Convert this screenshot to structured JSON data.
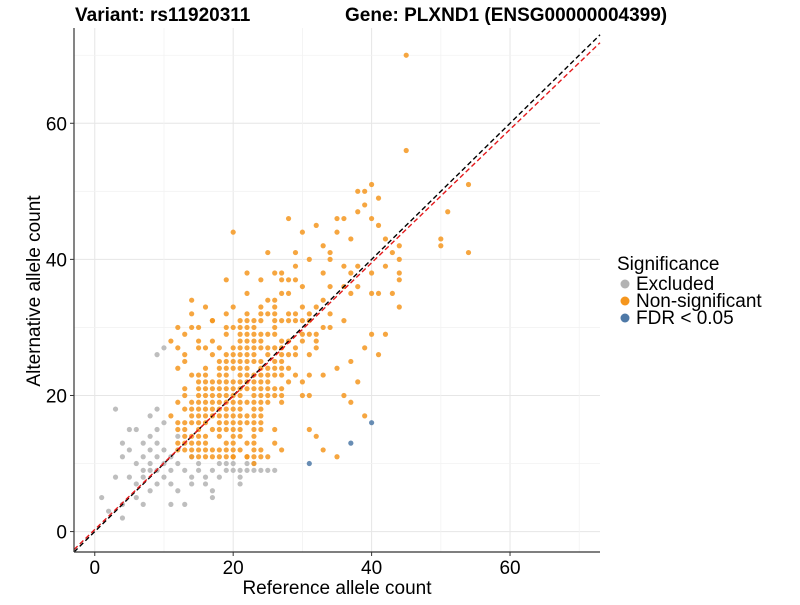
{
  "chart_data": {
    "type": "scatter",
    "title_left": "Variant: rs11920311",
    "title_right": "Gene: PLXND1 (ENSG00000004399)",
    "xlabel": "Reference allele count",
    "ylabel": "Alternative allele count",
    "xlim": [
      -3,
      73
    ],
    "ylim": [
      -3,
      74
    ],
    "xticks": [
      0,
      20,
      40,
      60
    ],
    "yticks": [
      0,
      20,
      40,
      60
    ],
    "grid": true,
    "reference_lines": [
      {
        "name": "identity",
        "slope": 1,
        "intercept": 0,
        "color": "#000000",
        "dash": true
      },
      {
        "name": "fit",
        "slope": 0.98,
        "intercept": 0.3,
        "color": "#E41A1C",
        "dash": true
      }
    ],
    "legend": {
      "title": "Significance",
      "position": "right",
      "entries": [
        {
          "label": "Excluded",
          "color": "#B3B3B3"
        },
        {
          "label": "Non-significant",
          "color": "#F5961E"
        },
        {
          "label": "FDR < 0.05",
          "color": "#4E79A7"
        }
      ]
    },
    "series": [
      {
        "name": "Excluded",
        "color": "#B3B3B3",
        "points": [
          [
            1,
            5
          ],
          [
            2,
            3
          ],
          [
            3,
            18
          ],
          [
            3,
            8
          ],
          [
            4,
            2
          ],
          [
            4,
            4
          ],
          [
            4,
            11
          ],
          [
            4,
            13
          ],
          [
            5,
            15
          ],
          [
            5,
            12
          ],
          [
            5,
            8
          ],
          [
            6,
            15
          ],
          [
            6,
            10
          ],
          [
            6,
            7
          ],
          [
            6,
            5
          ],
          [
            7,
            13
          ],
          [
            7,
            9
          ],
          [
            7,
            8
          ],
          [
            7,
            11
          ],
          [
            7,
            4
          ],
          [
            8,
            14
          ],
          [
            8,
            10
          ],
          [
            8,
            9
          ],
          [
            8,
            6
          ],
          [
            8,
            12
          ],
          [
            8,
            17
          ],
          [
            9,
            11
          ],
          [
            9,
            15
          ],
          [
            9,
            9
          ],
          [
            9,
            7
          ],
          [
            9,
            13
          ],
          [
            9,
            18
          ],
          [
            9,
            26
          ],
          [
            10,
            12
          ],
          [
            10,
            8
          ],
          [
            10,
            16
          ],
          [
            10,
            10
          ],
          [
            10,
            27
          ],
          [
            11,
            9
          ],
          [
            11,
            11
          ],
          [
            11,
            4
          ],
          [
            11,
            7
          ],
          [
            12,
            14
          ],
          [
            12,
            6
          ],
          [
            12,
            10
          ],
          [
            13,
            9
          ],
          [
            13,
            4
          ],
          [
            14,
            8
          ],
          [
            14,
            11
          ],
          [
            14,
            7
          ],
          [
            15,
            9
          ],
          [
            15,
            10
          ],
          [
            16,
            8
          ],
          [
            16,
            7
          ],
          [
            17,
            9
          ],
          [
            17,
            6
          ],
          [
            17,
            5
          ],
          [
            18,
            8
          ],
          [
            18,
            10
          ],
          [
            19,
            9
          ],
          [
            19,
            10
          ],
          [
            20,
            9
          ],
          [
            20,
            10
          ],
          [
            21,
            7
          ],
          [
            21,
            8
          ],
          [
            21,
            9
          ],
          [
            22,
            9
          ],
          [
            22,
            10
          ],
          [
            23,
            9
          ],
          [
            23,
            10
          ],
          [
            24,
            9
          ],
          [
            25,
            9
          ],
          [
            26,
            9
          ]
        ]
      },
      {
        "name": "FDR < 0.05",
        "color": "#4E79A7",
        "points": [
          [
            31,
            10
          ],
          [
            37,
            13
          ],
          [
            40,
            16
          ]
        ]
      },
      {
        "name": "Non-significant",
        "color": "#F5961E",
        "generated": true,
        "explicit_points": [
          [
            45,
            70
          ],
          [
            45,
            56
          ],
          [
            54,
            51
          ],
          [
            51,
            47
          ],
          [
            50,
            43
          ],
          [
            50,
            42
          ],
          [
            54,
            41
          ],
          [
            39,
            50
          ],
          [
            40,
            51
          ],
          [
            38,
            50
          ],
          [
            41,
            49
          ],
          [
            39,
            48
          ],
          [
            38,
            47
          ],
          [
            40,
            46
          ],
          [
            41,
            45
          ],
          [
            42,
            43
          ],
          [
            44,
            42
          ],
          [
            43,
            41
          ],
          [
            44,
            40
          ],
          [
            42,
            39
          ],
          [
            28,
            46
          ],
          [
            32,
            45
          ],
          [
            30,
            44
          ],
          [
            20,
            44
          ],
          [
            33,
            42
          ],
          [
            35,
            46
          ],
          [
            36,
            46
          ],
          [
            35,
            44
          ],
          [
            37,
            43
          ],
          [
            34,
            41
          ],
          [
            25,
            41
          ],
          [
            29,
            41
          ],
          [
            31,
            40
          ],
          [
            36,
            39
          ],
          [
            38,
            39
          ],
          [
            37,
            38
          ],
          [
            40,
            38
          ],
          [
            22,
            38
          ],
          [
            26,
            38
          ],
          [
            28,
            37
          ],
          [
            34,
            36
          ],
          [
            36,
            36
          ],
          [
            38,
            36
          ],
          [
            19,
            37
          ],
          [
            24,
            37
          ],
          [
            33,
            34
          ],
          [
            40,
            35
          ],
          [
            41,
            35
          ],
          [
            44,
            38
          ],
          [
            44,
            37
          ],
          [
            43,
            35
          ],
          [
            44,
            33
          ],
          [
            40,
            29
          ],
          [
            42,
            29
          ],
          [
            41,
            26
          ],
          [
            39,
            27
          ],
          [
            37,
            25
          ],
          [
            38,
            22
          ],
          [
            35,
            24
          ],
          [
            36,
            20
          ],
          [
            37,
            19
          ],
          [
            39,
            17
          ],
          [
            32,
            14
          ],
          [
            33,
            12
          ],
          [
            35,
            11
          ],
          [
            23,
            10
          ],
          [
            24,
            12
          ],
          [
            25,
            11
          ],
          [
            26,
            13
          ],
          [
            20,
            11
          ],
          [
            22,
            11
          ],
          [
            27,
            12
          ],
          [
            14,
            32
          ],
          [
            12,
            30
          ],
          [
            13,
            29
          ],
          [
            11,
            28
          ],
          [
            12,
            27
          ],
          [
            14,
            34
          ],
          [
            15,
            30
          ],
          [
            13,
            26
          ],
          [
            16,
            33
          ],
          [
            17,
            31
          ]
        ],
        "dense_region": {
          "x_range": [
            10,
            30
          ],
          "y_range": [
            12,
            34
          ],
          "count": 520
        }
      }
    ]
  }
}
